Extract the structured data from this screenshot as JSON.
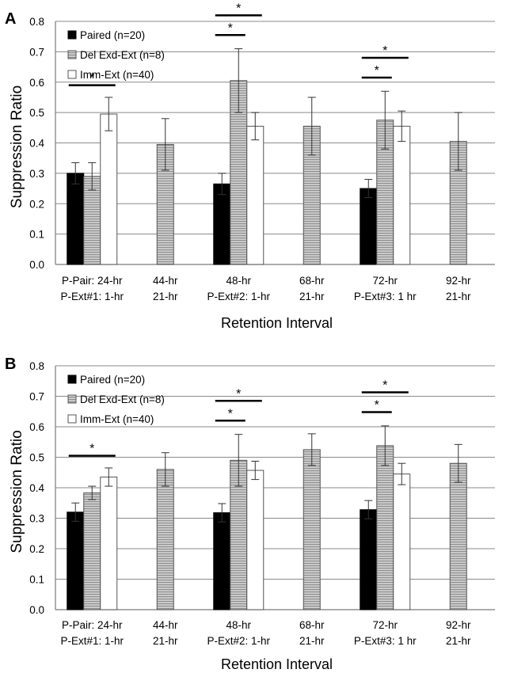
{
  "chart_data": [
    {
      "type": "bar",
      "panel": "A",
      "ylabel": "Suppression Ratio",
      "xlabel": "Retention Interval",
      "ylim": [
        0,
        0.8
      ],
      "yticks": [
        "0.0",
        "0.1",
        "0.2",
        "0.3",
        "0.4",
        "0.5",
        "0.6",
        "0.7",
        "0.8"
      ],
      "grid": true,
      "legend_position": "top-left",
      "categories": [
        {
          "line1": "P-Pair: 24-hr",
          "line2": "P-Ext#1: 1-hr"
        },
        {
          "line1": "44-hr",
          "line2": "21-hr"
        },
        {
          "line1": "48-hr",
          "line2": "P-Ext#2: 1-hr"
        },
        {
          "line1": "68-hr",
          "line2": "21-hr"
        },
        {
          "line1": "72-hr",
          "line2": "P-Ext#3: 1 hr"
        },
        {
          "line1": "92-hr",
          "line2": "21-hr"
        }
      ],
      "series": [
        {
          "name": "Paired (n=20)",
          "style": "black",
          "values": [
            0.3,
            null,
            0.265,
            null,
            0.25,
            null
          ],
          "err": [
            0.035,
            null,
            0.035,
            null,
            0.03,
            null
          ]
        },
        {
          "name": "Del Exd-Ext (n=8)",
          "style": "gray-striped",
          "values": [
            0.29,
            0.395,
            0.605,
            0.455,
            0.475,
            0.405
          ],
          "err": [
            0.045,
            0.085,
            0.105,
            0.095,
            0.095,
            0.095
          ]
        },
        {
          "name": "Imm-Ext (n=40)",
          "style": "white",
          "values": [
            0.495,
            null,
            0.455,
            null,
            0.455,
            null
          ],
          "err": [
            0.055,
            null,
            0.045,
            null,
            0.05,
            null
          ]
        }
      ],
      "significance": [
        {
          "group": 0,
          "from": "Paired (n=20)",
          "to": "Imm-Ext (n=40)",
          "label": "*"
        },
        {
          "group": 2,
          "from": "Paired (n=20)",
          "to": "Del Exd-Ext (n=8)",
          "label": "*"
        },
        {
          "group": 2,
          "from": "Paired (n=20)",
          "to": "Imm-Ext (n=40)",
          "label": "*"
        },
        {
          "group": 4,
          "from": "Paired (n=20)",
          "to": "Del Exd-Ext (n=8)",
          "label": "*"
        },
        {
          "group": 4,
          "from": "Paired (n=20)",
          "to": "Imm-Ext (n=40)",
          "label": "*"
        }
      ]
    },
    {
      "type": "bar",
      "panel": "B",
      "ylabel": "Suppression Ratio",
      "xlabel": "Retention Interval",
      "ylim": [
        0,
        0.8
      ],
      "yticks": [
        "0.0",
        "0.1",
        "0.2",
        "0.3",
        "0.4",
        "0.5",
        "0.6",
        "0.7",
        "0.8"
      ],
      "grid": true,
      "legend_position": "top-left",
      "categories": [
        {
          "line1": "P-Pair: 24-hr",
          "line2": "P-Ext#1: 1-hr"
        },
        {
          "line1": "44-hr",
          "line2": "21-hr"
        },
        {
          "line1": "48-hr",
          "line2": "P-Ext#2: 1-hr"
        },
        {
          "line1": "68-hr",
          "line2": "21-hr"
        },
        {
          "line1": "72-hr",
          "line2": "P-Ext#3: 1 hr"
        },
        {
          "line1": "92-hr",
          "line2": "21-hr"
        }
      ],
      "series": [
        {
          "name": "Paired (n=20)",
          "style": "black",
          "values": [
            0.32,
            null,
            0.318,
            null,
            0.328,
            null
          ],
          "err": [
            0.03,
            null,
            0.03,
            null,
            0.03,
            null
          ]
        },
        {
          "name": "Del Exd-Ext (n=8)",
          "style": "gray-striped",
          "values": [
            0.383,
            0.46,
            0.49,
            0.525,
            0.538,
            0.48
          ],
          "err": [
            0.022,
            0.055,
            0.085,
            0.052,
            0.065,
            0.062
          ]
        },
        {
          "name": "Imm-Ext (n=40)",
          "style": "white",
          "values": [
            0.435,
            null,
            0.457,
            null,
            0.445,
            null
          ],
          "err": [
            0.03,
            null,
            0.03,
            null,
            0.035,
            null
          ]
        }
      ],
      "significance": [
        {
          "group": 0,
          "from": "Paired (n=20)",
          "to": "Imm-Ext (n=40)",
          "label": "*"
        },
        {
          "group": 2,
          "from": "Paired (n=20)",
          "to": "Del Exd-Ext (n=8)",
          "label": "*"
        },
        {
          "group": 2,
          "from": "Paired (n=20)",
          "to": "Imm-Ext (n=40)",
          "label": "*"
        },
        {
          "group": 4,
          "from": "Paired (n=20)",
          "to": "Del Exd-Ext (n=8)",
          "label": "*"
        },
        {
          "group": 4,
          "from": "Paired (n=20)",
          "to": "Imm-Ext (n=40)",
          "label": "*"
        }
      ]
    }
  ],
  "colors": {
    "paired": "#000000",
    "del": "#c9c9c9",
    "del_stripe": "#8f8f8f",
    "imm": "#ffffff",
    "grid": "#8a8a8a",
    "axis": "#7a7a7a",
    "bar_edge": "#555555"
  }
}
